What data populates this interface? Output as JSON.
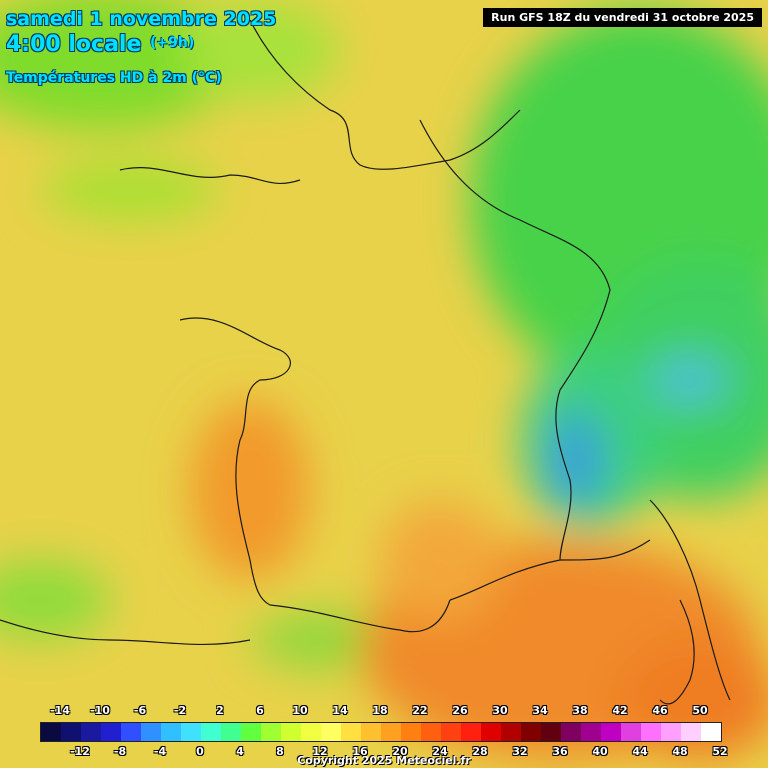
{
  "header": {
    "date": "samedi 1 novembre 2025",
    "time": "4:00 locale",
    "offset": "(+9h)",
    "parameter": "Températures HD à 2m (°C)",
    "run": "Run GFS 18Z du vendredi 31 octobre 2025"
  },
  "legend": {
    "top_labels": [
      "-14",
      "-10",
      "-6",
      "-2",
      "2",
      "6",
      "10",
      "14",
      "18",
      "22",
      "26",
      "30",
      "34",
      "38",
      "42",
      "46",
      "50"
    ],
    "bottom_labels": [
      "-12",
      "-8",
      "-4",
      "0",
      "4",
      "8",
      "12",
      "16",
      "20",
      "24",
      "28",
      "32",
      "36",
      "40",
      "44",
      "48",
      "52"
    ],
    "colors": [
      "#0a0a40",
      "#101070",
      "#1a1aa0",
      "#2020d0",
      "#3050ff",
      "#3090ff",
      "#30c0ff",
      "#40e0ff",
      "#40ffd0",
      "#40ff90",
      "#60ff40",
      "#a0ff30",
      "#d0ff30",
      "#f0ff40",
      "#ffff60",
      "#ffe040",
      "#ffc030",
      "#ffa020",
      "#ff8010",
      "#ff6010",
      "#ff4010",
      "#ff2010",
      "#e00000",
      "#b00000",
      "#800000",
      "#600010",
      "#800060",
      "#a00090",
      "#c000c0",
      "#e040e0",
      "#ff70ff",
      "#ffa0ff",
      "#ffd0ff",
      "#ffffff"
    ]
  },
  "copyright": "Copyright 2025 Meteociel.fr"
}
